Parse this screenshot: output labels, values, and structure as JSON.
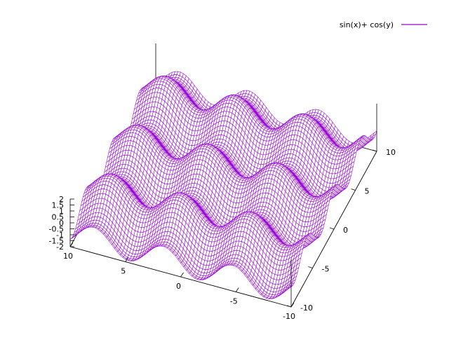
{
  "chart_data": {
    "type": "surface",
    "function": "sin(x)+ cos(y)",
    "legend": {
      "label": "sin(x)+ cos(y)",
      "position": "top-right"
    },
    "series_color": "#9400d3",
    "xlim": [
      -10,
      10
    ],
    "ylim": [
      -10,
      10
    ],
    "zlim": [
      -2,
      2
    ],
    "x_ticks": [
      {
        "value": 10,
        "label": "10"
      },
      {
        "value": 5,
        "label": "5"
      },
      {
        "value": 0,
        "label": "0"
      },
      {
        "value": -5,
        "label": "-5"
      },
      {
        "value": -10,
        "label": "-10"
      }
    ],
    "y_ticks": [
      {
        "value": -10,
        "label": "-10"
      },
      {
        "value": -5,
        "label": "-5"
      },
      {
        "value": 0,
        "label": "0"
      },
      {
        "value": 5,
        "label": "5"
      },
      {
        "value": 10,
        "label": "10"
      }
    ],
    "z_ticks": [
      {
        "value": 2,
        "label": "2"
      },
      {
        "value": 1.5,
        "label": "1.5"
      },
      {
        "value": 1,
        "label": "1"
      },
      {
        "value": 0.5,
        "label": "0.5"
      },
      {
        "value": 0,
        "label": "0"
      },
      {
        "value": -0.5,
        "label": "-0.5"
      },
      {
        "value": -1,
        "label": "-1"
      },
      {
        "value": -1.5,
        "label": "-1.5"
      },
      {
        "value": -2,
        "label": "-2"
      }
    ],
    "grid": false
  }
}
